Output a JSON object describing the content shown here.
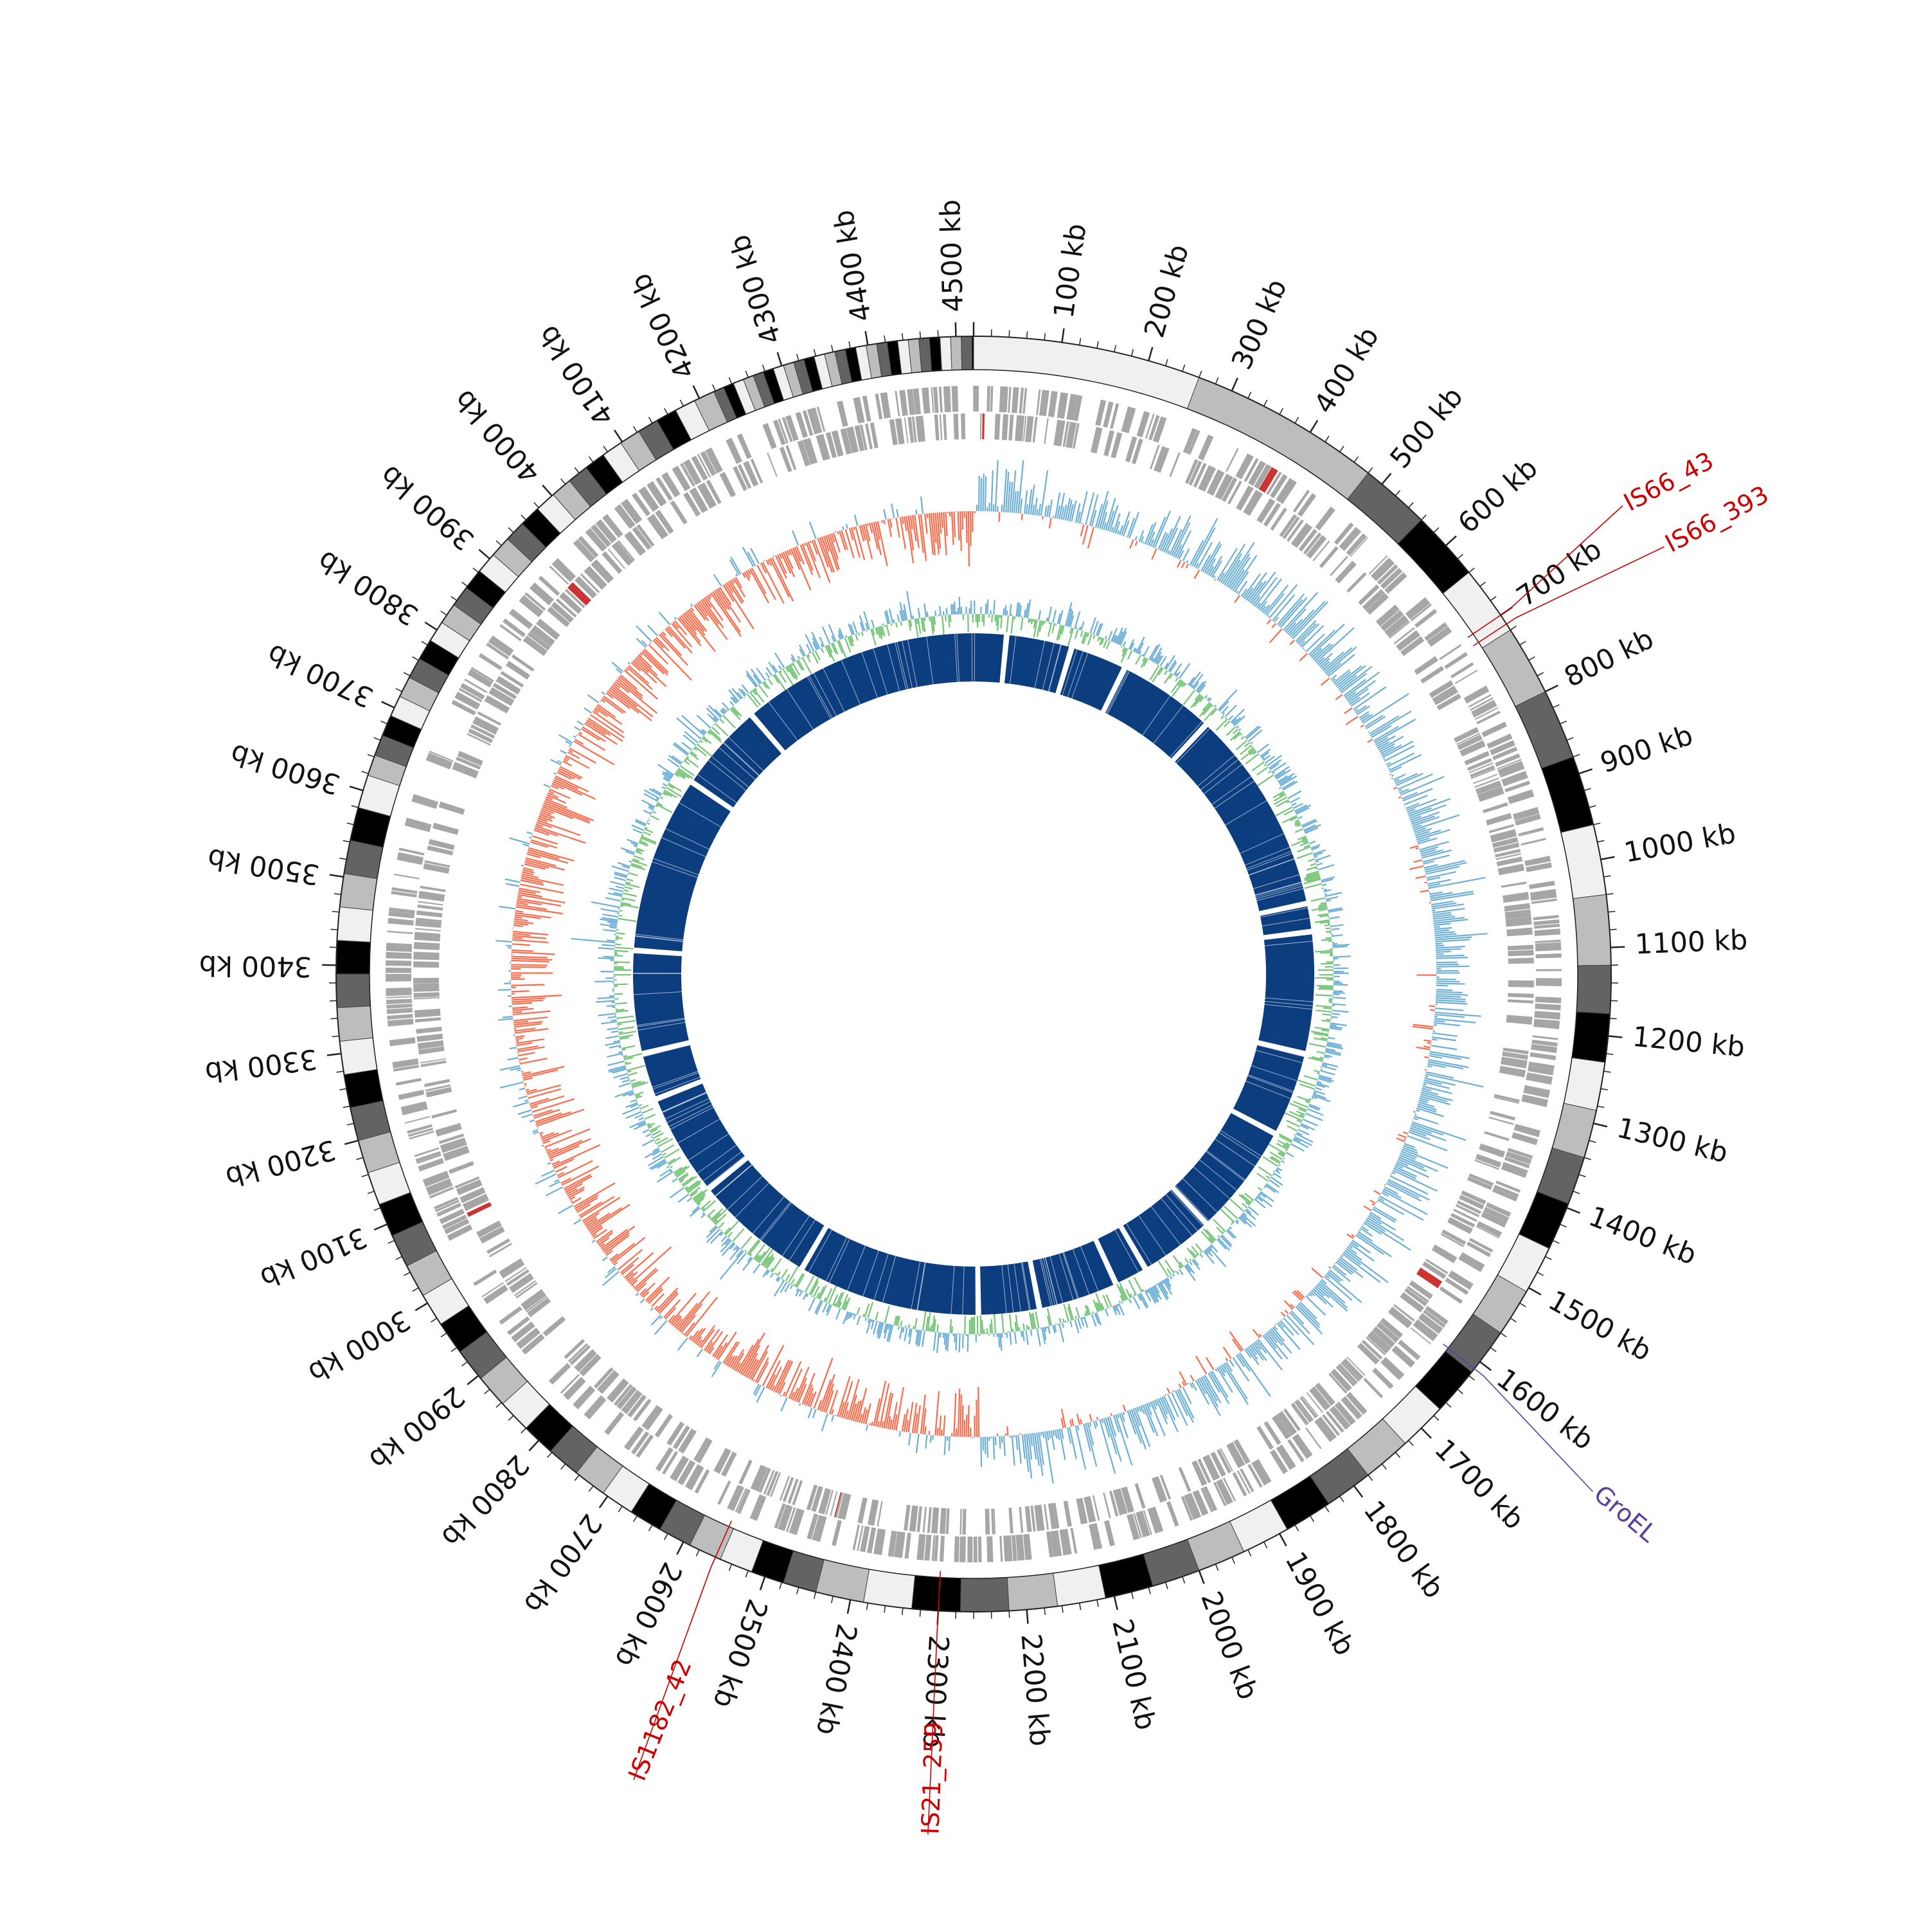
{
  "genome": {
    "length_kb": 4520,
    "tick_labels": [
      "100 kb",
      "200 kb",
      "300 kb",
      "400 kb",
      "500 kb",
      "600 kb",
      "700 kb",
      "800 kb",
      "900 kb",
      "1000 kb",
      "1100 kb",
      "1200 kb",
      "1300 kb",
      "1400 kb",
      "1500 kb",
      "1600 kb",
      "1700 kb",
      "1800 kb",
      "1900 kb",
      "2000 kb",
      "2100 kb",
      "2200 kb",
      "2300 kb",
      "2400 kb",
      "2500 kb",
      "2600 kb",
      "2700 kb",
      "2800 kb",
      "2900 kb",
      "3000 kb",
      "3100 kb",
      "3200 kb",
      "3300 kb",
      "3400 kb",
      "3500 kb",
      "3600 kb",
      "3700 kb",
      "3800 kb",
      "3900 kb",
      "4000 kb",
      "4100 kb",
      "4200 kb",
      "4300 kb",
      "4400 kb",
      "4500 kb"
    ]
  },
  "features": [
    {
      "label": "IS66_43",
      "position_kb": 700,
      "color": "#cc0000"
    },
    {
      "label": "IS66_393",
      "position_kb": 712,
      "color": "#cc0000"
    },
    {
      "label": "GroEL",
      "position_kb": 1610,
      "color": "#5a3fa0"
    },
    {
      "label": "IS1182_42",
      "position_kb": 2560,
      "color": "#cc0000"
    },
    {
      "label": "IS21_259",
      "position_kb": 2300,
      "color": "#cc0000"
    }
  ],
  "tracks": {
    "karyotype_colors": [
      "#f0f0f0",
      "#bdbdbd",
      "#636363",
      "#000000",
      "#f0f0f0",
      "#bdbdbd",
      "#636363",
      "#000000"
    ],
    "gene_color": "#a6a6a6",
    "is_color": "#cc3333",
    "gc_skew_positive_color": "#6baed6",
    "gc_skew_negative_color": "#fb6a4a",
    "gc_content_color": "#74c476",
    "gc_content_alt_color": "#6baed6",
    "inner_ring_color": "#0b3d7f"
  }
}
